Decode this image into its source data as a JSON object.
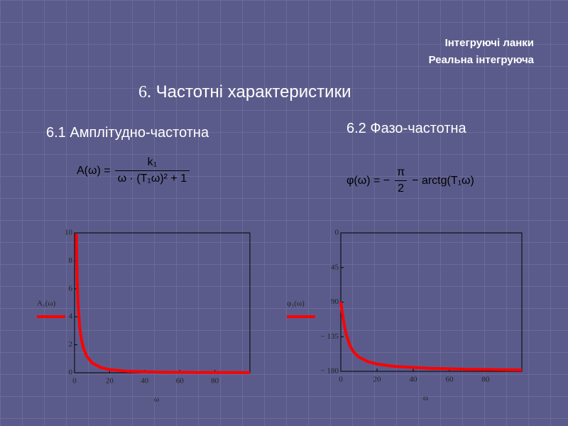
{
  "header": {
    "line1": "Інтегруючі ланки",
    "line2": "Реальна інтегруюча"
  },
  "title": {
    "number": "6.",
    "text": "Частотні характеристики"
  },
  "sections": [
    "6.1 Амплітудно-частотна",
    "6.2 Фазо-частотна"
  ],
  "formulas": [
    {
      "lhs": "A(ω) =",
      "numerator": "k₁",
      "denominator": "ω · (T₁ω)² + 1"
    },
    {
      "lhs": "φ(ω) = −",
      "numerator": "π",
      "denominator": "2",
      "rhs": "− arctg(T₁ω)"
    }
  ],
  "chart_data": [
    {
      "type": "line",
      "x_label": "ω",
      "xlim": [
        0,
        100
      ],
      "xticks": [
        0,
        20,
        40,
        60,
        80
      ],
      "ylim": [
        0,
        10
      ],
      "yticks": [
        0,
        2,
        4,
        6,
        8,
        10
      ],
      "x": [
        1,
        1.5,
        2,
        3,
        4,
        5,
        7,
        10,
        15,
        20,
        30,
        50,
        70,
        100
      ],
      "series": [
        {
          "name": "A₁(ω)",
          "color": "#ff0000",
          "values": [
            9.95,
            6.59,
            4.9,
            3.19,
            2.32,
            1.79,
            1.17,
            0.707,
            0.37,
            0.224,
            0.105,
            0.039,
            0.02,
            0.01
          ]
        }
      ]
    },
    {
      "type": "line",
      "x_label": "ω",
      "xlim": [
        0,
        100
      ],
      "xticks": [
        0,
        20,
        40,
        60,
        80
      ],
      "ylim": [
        -180,
        0
      ],
      "yticks": [
        0,
        {
          "value": -45,
          "label": "45"
        },
        {
          "value": -90,
          "label": "90"
        },
        {
          "value": -135,
          "label": "− 135"
        },
        {
          "value": -180,
          "label": "− 180"
        }
      ],
      "x": [
        0,
        1,
        2,
        3,
        5,
        7,
        10,
        15,
        20,
        30,
        50,
        70,
        100
      ],
      "series": [
        {
          "name": "φ₁(ω)",
          "color": "#ff0000",
          "values": [
            -90,
            -106.7,
            -121,
            -132,
            -146.3,
            -154.5,
            -161.6,
            -167.5,
            -170.5,
            -173.7,
            -176.2,
            -177.3,
            -178.1
          ]
        }
      ]
    }
  ]
}
